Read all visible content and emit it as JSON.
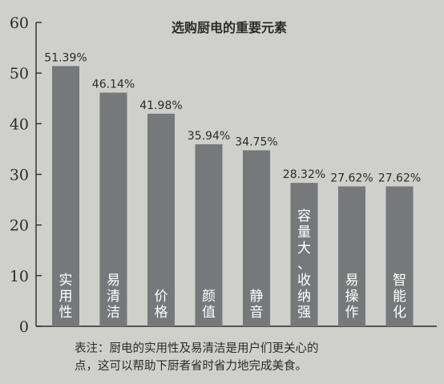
{
  "chart_data": {
    "type": "bar",
    "title": "选购厨电的重要元素",
    "categories": [
      "实用性",
      "易清洁",
      "价格",
      "颜值",
      "静音",
      "容量大、收纳强",
      "易操作",
      "智能化"
    ],
    "values": [
      51.39,
      46.14,
      41.98,
      35.94,
      34.75,
      28.32,
      27.62,
      27.62
    ],
    "value_labels": [
      "51.39%",
      "46.14%",
      "41.98%",
      "35.94%",
      "34.75%",
      "28.32%",
      "27.62%",
      "27.62%"
    ],
    "yticks": [
      "0",
      "10",
      "20",
      "30",
      "40",
      "50",
      "60"
    ],
    "ylim": [
      0,
      60
    ],
    "xlabel": "",
    "ylabel": "",
    "grid": false,
    "colors": {
      "bar": "#77787a",
      "background": "#cfd0cc",
      "axis": "#2b2b2b",
      "bar_text": "#ffffff"
    }
  },
  "caption": {
    "line1": "表注：厨电的实用性及易清洁是用户们更关心的",
    "line2": "点，这可以帮助下厨者省时省力地完成美食。"
  }
}
